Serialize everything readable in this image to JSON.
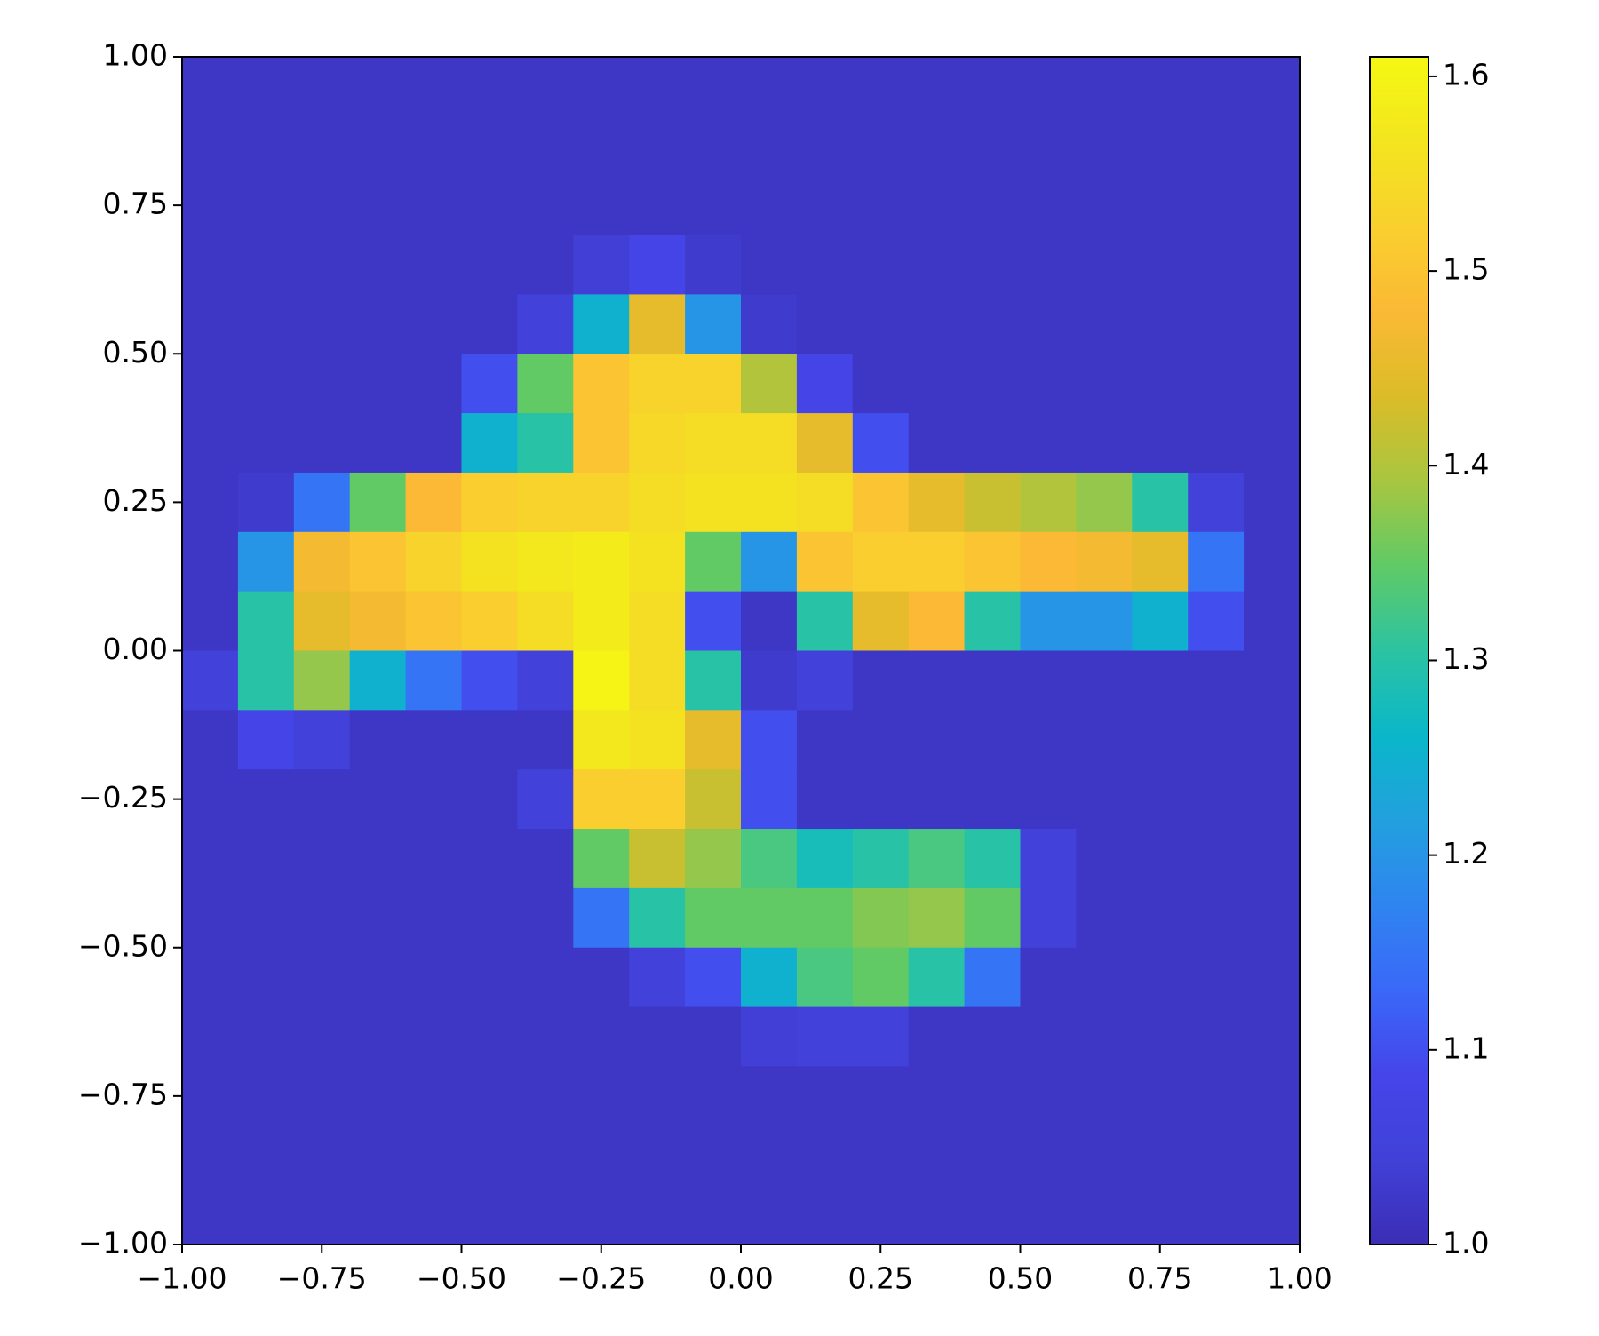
{
  "chart_data": {
    "type": "heatmap",
    "xlim": [
      -1,
      1
    ],
    "ylim": [
      -1,
      1
    ],
    "xticks": [
      {
        "value": -1,
        "label": "−1.00"
      },
      {
        "value": -0.75,
        "label": "−0.75"
      },
      {
        "value": -0.5,
        "label": "−0.50"
      },
      {
        "value": -0.25,
        "label": "−0.25"
      },
      {
        "value": 0,
        "label": "0.00"
      },
      {
        "value": 0.25,
        "label": "0.25"
      },
      {
        "value": 0.5,
        "label": "0.50"
      },
      {
        "value": 0.75,
        "label": "0.75"
      },
      {
        "value": 1,
        "label": "1.00"
      }
    ],
    "yticks": [
      {
        "value": -1,
        "label": "−1.00"
      },
      {
        "value": -0.75,
        "label": "−0.75"
      },
      {
        "value": -0.5,
        "label": "−0.50"
      },
      {
        "value": -0.25,
        "label": "−0.25"
      },
      {
        "value": 0,
        "label": "0.00"
      },
      {
        "value": 0.25,
        "label": "0.25"
      },
      {
        "value": 0.5,
        "label": "0.50"
      },
      {
        "value": 0.75,
        "label": "0.75"
      },
      {
        "value": 1,
        "label": "1.00"
      }
    ],
    "z": [
      [
        1.02,
        1.02,
        1.02,
        1.02,
        1.02,
        1.02,
        1.02,
        1.02,
        1.02,
        1.02,
        1.02,
        1.02,
        1.02,
        1.02,
        1.02,
        1.02,
        1.02,
        1.02,
        1.02,
        1.02
      ],
      [
        1.02,
        1.02,
        1.02,
        1.02,
        1.02,
        1.02,
        1.02,
        1.02,
        1.02,
        1.02,
        1.02,
        1.02,
        1.02,
        1.02,
        1.02,
        1.02,
        1.02,
        1.02,
        1.02,
        1.02
      ],
      [
        1.02,
        1.02,
        1.02,
        1.02,
        1.02,
        1.02,
        1.02,
        1.02,
        1.02,
        1.02,
        1.02,
        1.02,
        1.02,
        1.02,
        1.02,
        1.02,
        1.02,
        1.02,
        1.02,
        1.02
      ],
      [
        1.02,
        1.02,
        1.02,
        1.02,
        1.02,
        1.02,
        1.02,
        1.04,
        1.08,
        1.03,
        1.02,
        1.02,
        1.02,
        1.02,
        1.02,
        1.02,
        1.02,
        1.02,
        1.02,
        1.02
      ],
      [
        1.02,
        1.02,
        1.02,
        1.02,
        1.02,
        1.02,
        1.05,
        1.25,
        1.45,
        1.2,
        1.03,
        1.02,
        1.02,
        1.02,
        1.02,
        1.02,
        1.02,
        1.02,
        1.02,
        1.02
      ],
      [
        1.02,
        1.02,
        1.02,
        1.02,
        1.02,
        1.1,
        1.35,
        1.5,
        1.53,
        1.53,
        1.4,
        1.08,
        1.02,
        1.02,
        1.02,
        1.02,
        1.02,
        1.02,
        1.02,
        1.02
      ],
      [
        1.02,
        1.02,
        1.02,
        1.02,
        1.02,
        1.25,
        1.3,
        1.5,
        1.54,
        1.55,
        1.55,
        1.45,
        1.1,
        1.02,
        1.02,
        1.02,
        1.02,
        1.02,
        1.02,
        1.02
      ],
      [
        1.02,
        1.03,
        1.15,
        1.35,
        1.48,
        1.52,
        1.53,
        1.53,
        1.55,
        1.56,
        1.56,
        1.55,
        1.5,
        1.45,
        1.42,
        1.4,
        1.38,
        1.3,
        1.05,
        1.02
      ],
      [
        1.02,
        1.2,
        1.47,
        1.5,
        1.53,
        1.56,
        1.57,
        1.58,
        1.56,
        1.35,
        1.2,
        1.5,
        1.52,
        1.52,
        1.5,
        1.48,
        1.47,
        1.45,
        1.15,
        1.02
      ],
      [
        1.02,
        1.3,
        1.45,
        1.47,
        1.5,
        1.52,
        1.55,
        1.58,
        1.55,
        1.1,
        1.02,
        1.3,
        1.45,
        1.48,
        1.3,
        1.2,
        1.2,
        1.25,
        1.1,
        1.02
      ],
      [
        1.05,
        1.3,
        1.38,
        1.25,
        1.15,
        1.1,
        1.05,
        1.6,
        1.55,
        1.3,
        1.03,
        1.05,
        1.02,
        1.02,
        1.02,
        1.02,
        1.02,
        1.02,
        1.02,
        1.02
      ],
      [
        1.02,
        1.08,
        1.05,
        1.02,
        1.02,
        1.02,
        1.02,
        1.57,
        1.56,
        1.45,
        1.1,
        1.02,
        1.02,
        1.02,
        1.02,
        1.02,
        1.02,
        1.02,
        1.02,
        1.02
      ],
      [
        1.02,
        1.02,
        1.02,
        1.02,
        1.02,
        1.02,
        1.05,
        1.52,
        1.52,
        1.42,
        1.1,
        1.02,
        1.02,
        1.02,
        1.02,
        1.02,
        1.02,
        1.02,
        1.02,
        1.02
      ],
      [
        1.02,
        1.02,
        1.02,
        1.02,
        1.02,
        1.02,
        1.02,
        1.35,
        1.42,
        1.38,
        1.33,
        1.28,
        1.3,
        1.33,
        1.3,
        1.05,
        1.02,
        1.02,
        1.02,
        1.02
      ],
      [
        1.02,
        1.02,
        1.02,
        1.02,
        1.02,
        1.02,
        1.02,
        1.15,
        1.3,
        1.35,
        1.35,
        1.35,
        1.37,
        1.38,
        1.35,
        1.05,
        1.02,
        1.02,
        1.02,
        1.02
      ],
      [
        1.02,
        1.02,
        1.02,
        1.02,
        1.02,
        1.02,
        1.02,
        1.02,
        1.05,
        1.1,
        1.25,
        1.33,
        1.35,
        1.3,
        1.15,
        1.02,
        1.02,
        1.02,
        1.02,
        1.02
      ],
      [
        1.02,
        1.02,
        1.02,
        1.02,
        1.02,
        1.02,
        1.02,
        1.02,
        1.02,
        1.02,
        1.04,
        1.05,
        1.05,
        1.02,
        1.02,
        1.02,
        1.02,
        1.02,
        1.02,
        1.02
      ],
      [
        1.02,
        1.02,
        1.02,
        1.02,
        1.02,
        1.02,
        1.02,
        1.02,
        1.02,
        1.02,
        1.02,
        1.02,
        1.02,
        1.02,
        1.02,
        1.02,
        1.02,
        1.02,
        1.02,
        1.02
      ],
      [
        1.02,
        1.02,
        1.02,
        1.02,
        1.02,
        1.02,
        1.02,
        1.02,
        1.02,
        1.02,
        1.02,
        1.02,
        1.02,
        1.02,
        1.02,
        1.02,
        1.02,
        1.02,
        1.02,
        1.02
      ],
      [
        1.02,
        1.02,
        1.02,
        1.02,
        1.02,
        1.02,
        1.02,
        1.02,
        1.02,
        1.02,
        1.02,
        1.02,
        1.02,
        1.02,
        1.02,
        1.02,
        1.02,
        1.02,
        1.02,
        1.02
      ]
    ],
    "colorbar": {
      "lim": [
        1.0,
        1.61
      ],
      "ticks": [
        {
          "value": 1,
          "label": "1.0"
        },
        1.1,
        1.2,
        1.3,
        1.4,
        1.5,
        1.6
      ],
      "colors": [
        "#3b2db5",
        "#4141d8",
        "#4545ea",
        "#3a68f8",
        "#2f84f0",
        "#22a0de",
        "#0ab7c9",
        "#2cc3a2",
        "#60ca66",
        "#a8c640",
        "#dcbc28",
        "#fbb935",
        "#f9d02e",
        "#f3e51f",
        "#f5f812"
      ]
    }
  }
}
